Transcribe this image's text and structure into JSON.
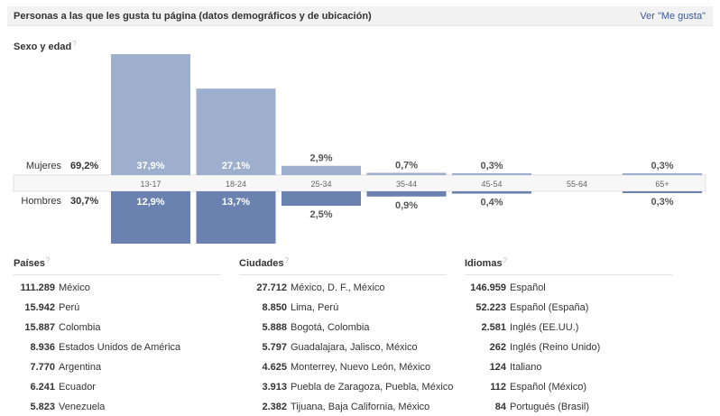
{
  "header": {
    "title": "Personas a las que les gusta tu página (datos demográficos y de ubicación)",
    "link": "Ver \"Me gusta\""
  },
  "help_mark": "?",
  "age_section": {
    "title": "Sexo y edad"
  },
  "chart_data": {
    "type": "bar",
    "title": "Sexo y edad",
    "categories": [
      "13-17",
      "18-24",
      "25-34",
      "35-44",
      "45-54",
      "55-64",
      "65+"
    ],
    "series": [
      {
        "name": "Mujeres",
        "total_label": "69,2%",
        "values": [
          37.9,
          27.1,
          2.9,
          0.7,
          0.3,
          0,
          0.3
        ],
        "labels": [
          "37,9%",
          "27,1%",
          "2,9%",
          "0,7%",
          "0,3%",
          "",
          "0,3%"
        ],
        "color": "#9eaecd"
      },
      {
        "name": "Hombres",
        "total_label": "30,7%",
        "values": [
          12.9,
          13.7,
          2.5,
          0.9,
          0.4,
          0,
          0.3
        ],
        "labels": [
          "12,9%",
          "13,7%",
          "2,5%",
          "0,9%",
          "0,4%",
          "",
          "0,3%"
        ],
        "color": "#6b82b1"
      }
    ],
    "ylim": [
      0,
      37.9
    ]
  },
  "countries": {
    "title": "Países",
    "items": [
      {
        "count": "111.289",
        "name": "México"
      },
      {
        "count": "15.942",
        "name": "Perú"
      },
      {
        "count": "15.887",
        "name": "Colombia"
      },
      {
        "count": "8.936",
        "name": "Estados Unidos de América"
      },
      {
        "count": "7.770",
        "name": "Argentina"
      },
      {
        "count": "6.241",
        "name": "Ecuador"
      },
      {
        "count": "5.823",
        "name": "Venezuela"
      }
    ]
  },
  "cities": {
    "title": "Ciudades",
    "items": [
      {
        "count": "27.712",
        "name": "México, D. F., México"
      },
      {
        "count": "8.850",
        "name": "Lima, Perú"
      },
      {
        "count": "5.888",
        "name": "Bogotá, Colombia"
      },
      {
        "count": "5.797",
        "name": "Guadalajara, Jalisco, México"
      },
      {
        "count": "4.625",
        "name": "Monterrey, Nuevo León, México"
      },
      {
        "count": "3.913",
        "name": "Puebla de Zaragoza, Puebla, México"
      },
      {
        "count": "2.382",
        "name": "Tijuana, Baja California, México"
      }
    ]
  },
  "languages": {
    "title": "Idiomas",
    "items": [
      {
        "count": "146.959",
        "name": "Español"
      },
      {
        "count": "52.223",
        "name": "Español (España)"
      },
      {
        "count": "2.581",
        "name": "Inglés (EE.UU.)"
      },
      {
        "count": "262",
        "name": "Inglés (Reino Unido)"
      },
      {
        "count": "124",
        "name": "Italiano"
      },
      {
        "count": "112",
        "name": "Español (México)"
      },
      {
        "count": "84",
        "name": "Portugués (Brasil)"
      }
    ]
  }
}
